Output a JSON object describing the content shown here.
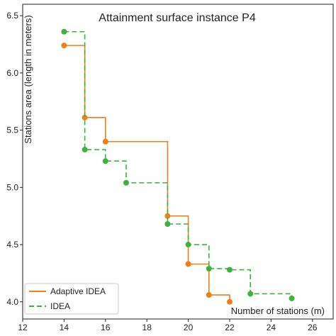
{
  "chart_data": {
    "type": "line",
    "title": "Attainment surface instance P4",
    "xlabel": "Number of stations (m)",
    "ylabel": "Stations area (length in meters)",
    "xlim": [
      12,
      27
    ],
    "ylim": [
      3.85,
      6.6
    ],
    "xticks": [
      12,
      14,
      16,
      18,
      20,
      22,
      24,
      26
    ],
    "yticks": [
      4.0,
      4.5,
      5.0,
      5.5,
      6.0,
      6.5
    ],
    "grid": false,
    "legend_position": "bottom-left",
    "step": "post",
    "series": [
      {
        "name": "Adaptive IDEA",
        "color": "#f07f1a",
        "line_style": "solid",
        "points": [
          {
            "x": 14,
            "y": 6.24
          },
          {
            "x": 15,
            "y": 5.61
          },
          {
            "x": 16,
            "y": 5.4
          },
          {
            "x": 19,
            "y": 4.75
          },
          {
            "x": 20,
            "y": 4.33
          },
          {
            "x": 21,
            "y": 4.06
          },
          {
            "x": 22,
            "y": 4.0
          }
        ]
      },
      {
        "name": "IDEA",
        "color": "#3cb33c",
        "line_style": "dashed",
        "points": [
          {
            "x": 14,
            "y": 6.36
          },
          {
            "x": 15,
            "y": 5.33
          },
          {
            "x": 16,
            "y": 5.23
          },
          {
            "x": 17,
            "y": 5.04
          },
          {
            "x": 19,
            "y": 4.68
          },
          {
            "x": 20,
            "y": 4.5
          },
          {
            "x": 21,
            "y": 4.29
          },
          {
            "x": 22,
            "y": 4.28
          },
          {
            "x": 23,
            "y": 4.07
          },
          {
            "x": 25,
            "y": 4.03
          }
        ]
      }
    ]
  }
}
